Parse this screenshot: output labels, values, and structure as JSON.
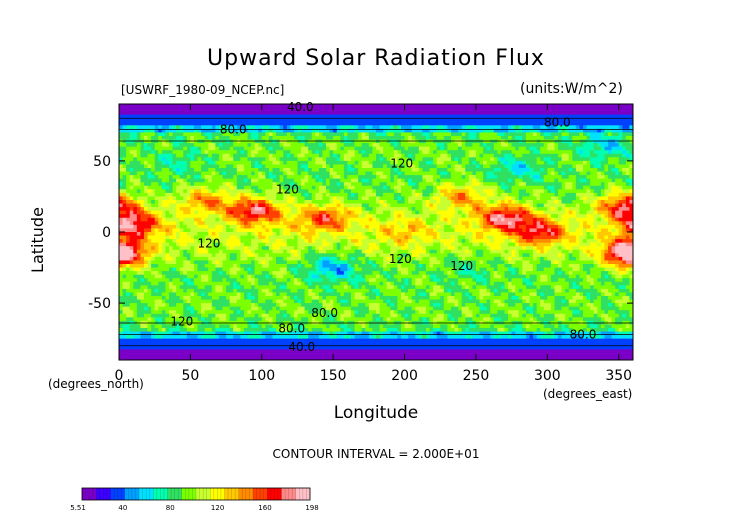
{
  "chart_data": {
    "type": "heatmap",
    "title": "Upward Solar Radiation Flux",
    "subtitle_left": "[USWRF_1980-09_NCEP.nc]",
    "subtitle_right": "(units:W/m^2)",
    "xlabel": "Longitude",
    "ylabel": "Latitude",
    "x_note": "(degrees_north)",
    "x_unit": "(degrees_east)",
    "xlim": [
      0,
      360
    ],
    "ylim": [
      -90,
      90
    ],
    "x_ticks": [
      0,
      50,
      100,
      150,
      200,
      250,
      300,
      350
    ],
    "y_ticks": [
      -50,
      0,
      50
    ],
    "contour_interval_text": "CONTOUR INTERVAL = 2.000E+01",
    "contour_labels": [
      {
        "text": "40.0",
        "lon": 127,
        "lat": 88
      },
      {
        "text": "80.0",
        "lon": 80,
        "lat": 72
      },
      {
        "text": "80.0",
        "lon": 307,
        "lat": 77
      },
      {
        "text": "120",
        "lon": 198,
        "lat": 48
      },
      {
        "text": "120",
        "lon": 118,
        "lat": 30
      },
      {
        "text": "120",
        "lon": 63,
        "lat": -8
      },
      {
        "text": "120",
        "lon": 197,
        "lat": -19
      },
      {
        "text": "120",
        "lon": 240,
        "lat": -24
      },
      {
        "text": "120",
        "lon": 44,
        "lat": -63
      },
      {
        "text": "80.0",
        "lon": 144,
        "lat": -57
      },
      {
        "text": "80.0",
        "lon": 121,
        "lat": -68
      },
      {
        "text": "80.0",
        "lon": 325,
        "lat": -72
      },
      {
        "text": "40.0",
        "lon": 128,
        "lat": -81
      }
    ],
    "colorbar": {
      "min_label": "5.51",
      "max_label": "198",
      "tick_labels": [
        "40",
        "80",
        "120",
        "160"
      ],
      "range": [
        5.51,
        198
      ],
      "colors": [
        "#7a00c8",
        "#3c00ff",
        "#0040ff",
        "#00a0ff",
        "#00e0ff",
        "#00ffb0",
        "#30e060",
        "#7cff00",
        "#c8ff30",
        "#ffff00",
        "#ffc800",
        "#ff8c00",
        "#ff4000",
        "#ff0000",
        "#ff8a8a",
        "#ffc0c8"
      ]
    },
    "features": [
      {
        "lon": 10,
        "lat": 5,
        "value": 185
      },
      {
        "lon": 0,
        "lat": -15,
        "value": 160
      },
      {
        "lon": 358,
        "lat": -15,
        "value": 170
      },
      {
        "lon": 355,
        "lat": 18,
        "value": 175
      },
      {
        "lon": 95,
        "lat": 15,
        "value": 180
      },
      {
        "lon": 60,
        "lat": 22,
        "value": 145
      },
      {
        "lon": 145,
        "lat": 10,
        "value": 160
      },
      {
        "lon": 270,
        "lat": 10,
        "value": 185
      },
      {
        "lon": 295,
        "lat": 0,
        "value": 175
      },
      {
        "lon": 240,
        "lat": 25,
        "value": 140
      },
      {
        "lon": 125,
        "lat": 5,
        "value": 115
      },
      {
        "lon": 200,
        "lat": 0,
        "value": 135
      },
      {
        "lon": 150,
        "lat": -25,
        "value": 50
      },
      {
        "lon": 245,
        "lat": -25,
        "value": 80
      },
      {
        "lon": 340,
        "lat": 60,
        "value": 60
      },
      {
        "lon": 40,
        "lat": 50,
        "value": 75
      },
      {
        "lon": 280,
        "lat": 45,
        "value": 65
      }
    ]
  }
}
